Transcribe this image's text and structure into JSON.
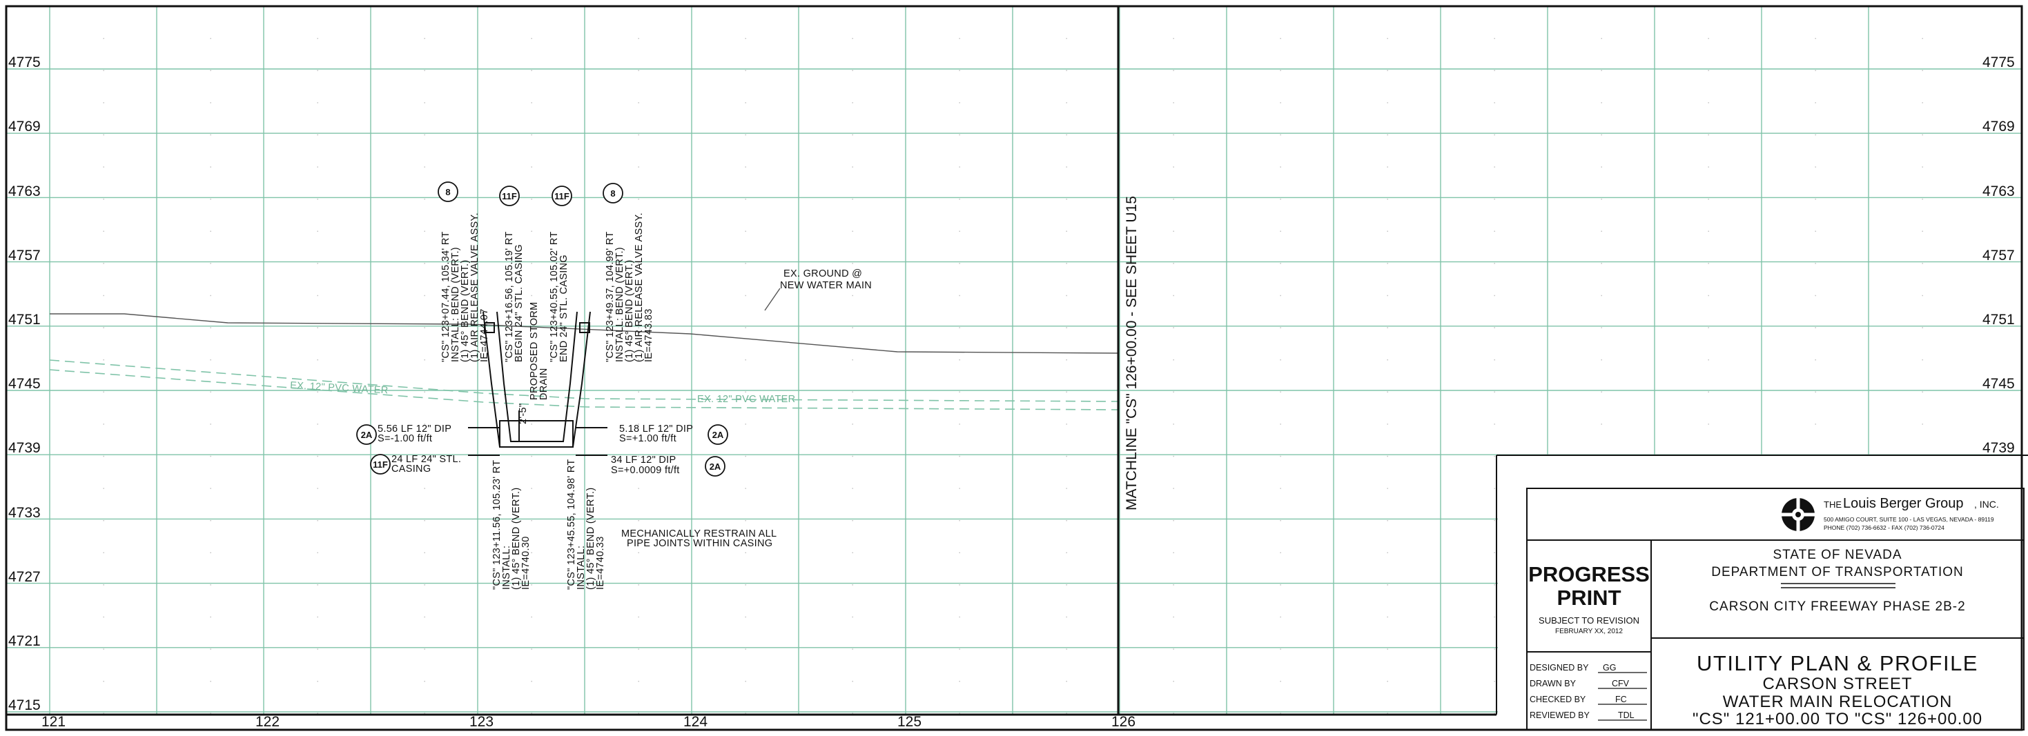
{
  "profile": {
    "elevations": [
      "4775",
      "4769",
      "4763",
      "4757",
      "4751",
      "4745",
      "4739",
      "4733",
      "4727",
      "4721",
      "4715"
    ],
    "stations": [
      "121",
      "122",
      "123",
      "124",
      "125",
      "126"
    ],
    "pipe_labels": {
      "left": "EX. 12\" PVC WATER",
      "right": "EX. 12\" PVC WATER"
    },
    "ground_note": {
      "line1": "EX. GROUND @",
      "line2": "NEW WATER MAIN"
    },
    "matchline": "MATCHLINE \"CS\" 126+00.00 - SEE SHEET U15",
    "callouts": [
      "8",
      "11F",
      "11F",
      "8",
      "2A",
      "2A",
      "11F",
      "2A"
    ],
    "vertical_notes_top": [
      {
        "line1": "\"CS\" 123+07.44, 105.34' RT",
        "line2": "INSTALL: BEND (VERT.)",
        "line3": "(1) 45° BEND (VERT.)",
        "line4": "(1) AIR RELEASE VALVE ASSY.",
        "line5": "IE=4744.07"
      },
      {
        "line1": "\"CS\" 123+16.56, 105.19' RT",
        "line2": "BEGIN 24\" STL. CASING"
      },
      {
        "line1": "PROPOSED STORM",
        "line2": "DRAIN"
      },
      {
        "line1": "\"CS\" 123+40.55, 105.02' RT",
        "line2": "END 24\" STL. CASING"
      },
      {
        "line1": "\"CS\" 123+49.37, 104.99' RT",
        "line2": "INSTALL: BEND (VERT.)",
        "line3": "(1) 45° BEND (VERT.)",
        "line4": "(1) AIR RELEASE VALVE ASSY.",
        "line5": "IE=4743.83"
      }
    ],
    "vertical_notes_bottom": [
      {
        "line1": "\"CS\" 123+11.56, 105.23' RT",
        "line2": "INSTALL:",
        "line3": "(1) 45° BEND (VERT.)",
        "line4": "IE=4740.30"
      },
      {
        "line1": "\"CS\" 123+45.55, 104.98' RT",
        "line2": "INSTALL:",
        "line3": "(1) 45° BEND (VERT.)",
        "line4": "IE=4740.33"
      }
    ],
    "clearance": "2'-5\"",
    "pipe_notes": {
      "left1": {
        "line1": "5.56 LF 12\" DIP",
        "line2": "S=-1.00 ft/ft"
      },
      "left2": {
        "line1": "24 LF 24\" STL.",
        "line2": "CASING"
      },
      "right1": {
        "line1": "5.18 LF 12\" DIP",
        "line2": "S=+1.00 ft/ft"
      },
      "right2": {
        "line1": "34 LF 12\" DIP",
        "line2": "S=+0.0009 ft/ft"
      }
    },
    "restrain_note": {
      "line1": "MECHANICALLY RESTRAIN ALL",
      "line2": "PIPE JOINTS WITHIN CASING"
    }
  },
  "title_block": {
    "company": {
      "prefix": "THE",
      "name": "Louis Berger Group",
      "suffix": ", INC."
    },
    "address": "500 AMIGO COURT, SUITE 100 - LAS VEGAS, NEVADA - 89119",
    "phone": "PHONE (702) 736-6632 - FAX (702) 736-0724",
    "agency": {
      "line1": "STATE OF NEVADA",
      "line2": "DEPARTMENT OF TRANSPORTATION"
    },
    "project": "CARSON CITY FREEWAY PHASE 2B-2",
    "stamp": {
      "line1": "PROGRESS",
      "line2": "PRINT",
      "line3": "SUBJECT TO REVISION",
      "line4": "FEBRUARY XX, 2012"
    },
    "signoffs": [
      {
        "label": "DESIGNED BY",
        "initials": "GG"
      },
      {
        "label": "DRAWN BY",
        "initials": "CFV"
      },
      {
        "label": "CHECKED BY",
        "initials": "FC"
      },
      {
        "label": "REVIEWED BY",
        "initials": "TDL"
      }
    ],
    "sheet_title": {
      "line1": "UTILITY PLAN & PROFILE",
      "line2": "CARSON STREET",
      "line3": "WATER MAIN RELOCATION",
      "line4": "\"CS\" 121+00.00 TO \"CS\" 126+00.00"
    }
  }
}
